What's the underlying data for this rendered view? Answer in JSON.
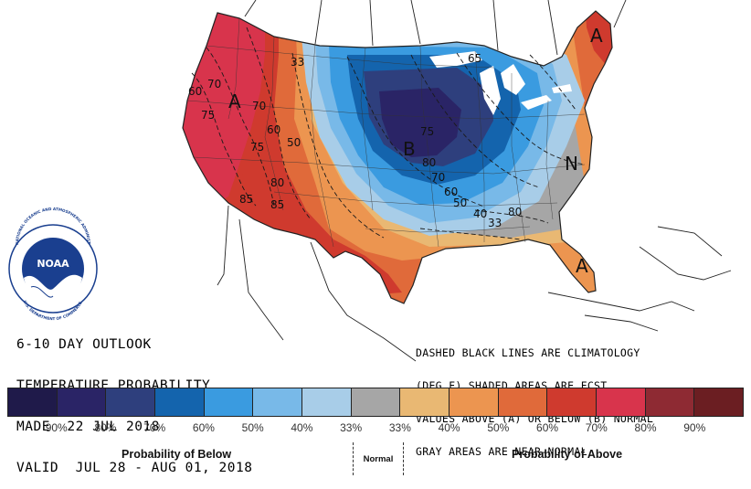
{
  "title_lines": [
    "6-10 DAY OUTLOOK",
    "TEMPERATURE PROBABILITY",
    "MADE  22 JUL 2018",
    "VALID  JUL 28 - AUG 01, 2018"
  ],
  "note_lines": [
    "DASHED BLACK LINES ARE CLIMATOLOGY",
    "(DEG F) SHADED AREAS ARE FCST",
    "VALUES ABOVE (A) OR BELOW (B) NORMAL",
    "GRAY AREAS ARE NEAR-NORMAL"
  ],
  "map_labels": {
    "above_west": "A",
    "below_center": "B",
    "normal_east": "N",
    "above_maine": "A",
    "above_florida": "A"
  },
  "contour_labels": [
    {
      "text": "33"
    },
    {
      "text": "70"
    },
    {
      "text": "60"
    },
    {
      "text": "75"
    },
    {
      "text": "60"
    },
    {
      "text": "70"
    },
    {
      "text": "50"
    },
    {
      "text": "75"
    },
    {
      "text": "80"
    },
    {
      "text": "85"
    },
    {
      "text": "85"
    },
    {
      "text": "75"
    },
    {
      "text": "80"
    },
    {
      "text": "70"
    },
    {
      "text": "60"
    },
    {
      "text": "50"
    },
    {
      "text": "40"
    },
    {
      "text": "33"
    },
    {
      "text": "80"
    },
    {
      "text": "65"
    }
  ],
  "colorbar": {
    "swatches": [
      "#1f1a4a",
      "#2a2466",
      "#2e3f7d",
      "#1464ad",
      "#3a9be0",
      "#78b9e8",
      "#a8cde8",
      "#a6a6a6",
      "#e9b873",
      "#ec9550",
      "#e06a3a",
      "#cf3a2e",
      "#d8344c",
      "#8e2a33",
      "#6b1e22"
    ],
    "tick_labels": [
      "90%",
      "80%",
      "70%",
      "60%",
      "50%",
      "40%",
      "33%",
      "33%",
      "40%",
      "50%",
      "60%",
      "70%",
      "80%",
      "90%"
    ],
    "below_caption": "Probability of Below",
    "normal_caption": "Normal",
    "above_caption": "Probability of Above"
  },
  "logo": {
    "text": "NOAA",
    "ring_text": "NATIONAL OCEANIC AND ATMOSPHERIC ADMINISTRATION",
    "ring_text_bottom": "U.S. DEPARTMENT OF COMMERCE"
  },
  "region_colors": {
    "above90": "#6b1e22",
    "above80": "#8e2a33",
    "above70": "#d8344c",
    "above60": "#cf3a2e",
    "above50": "#e06a3a",
    "above40": "#ec9550",
    "above33": "#e9b873",
    "normal": "#a6a6a6",
    "below33": "#a8cde8",
    "below40": "#78b9e8",
    "below50": "#3a9be0",
    "below60": "#1464ad",
    "below70": "#2e3f7d",
    "below80": "#2a2466"
  }
}
